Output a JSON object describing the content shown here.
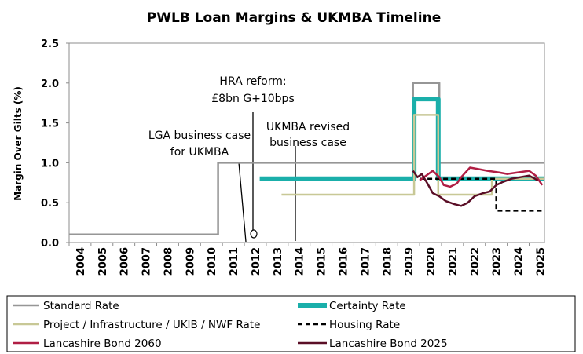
{
  "chart_data": {
    "type": "line",
    "title": "PWLB Loan Margins & UKMBA Timeline",
    "ylabel": "Margin Over Gilts (%)",
    "xlabel": "",
    "xlim": [
      2004,
      2025.7
    ],
    "ylim": [
      0,
      2.5
    ],
    "yticks": [
      0,
      0.5,
      1.0,
      1.5,
      2.0,
      2.5
    ],
    "ytick_labels": [
      "0.0",
      "0.5",
      "1.0",
      "1.5",
      "2.0",
      "2.5"
    ],
    "xticks": [
      "2004",
      "2005",
      "2006",
      "2007",
      "2008",
      "2009",
      "2010",
      "2011",
      "2012",
      "2013",
      "2014",
      "2015",
      "2016",
      "2017",
      "2018",
      "2019",
      "2020",
      "2021",
      "2022",
      "2023",
      "2024",
      "2025"
    ],
    "grid": false,
    "legend_position": "bottom",
    "series": [
      {
        "name": "Standard Rate",
        "color": "#969696",
        "style": "solid",
        "width": 2.5,
        "points": [
          [
            2004.0,
            0.1
          ],
          [
            2010.8,
            0.1
          ],
          [
            2010.8,
            1.0
          ],
          [
            2019.7,
            1.0
          ],
          [
            2019.7,
            2.0
          ],
          [
            2020.9,
            2.0
          ],
          [
            2020.9,
            1.0
          ],
          [
            2025.7,
            1.0
          ]
        ]
      },
      {
        "name": "Certainty Rate",
        "color": "#1aafaa",
        "style": "solid",
        "width": 6,
        "points": [
          [
            2012.7,
            0.8
          ],
          [
            2019.75,
            0.8
          ],
          [
            2019.75,
            1.8
          ],
          [
            2020.85,
            1.8
          ],
          [
            2020.85,
            0.8
          ],
          [
            2025.7,
            0.8
          ]
        ]
      },
      {
        "name": "Project / Infrastructure / UKIB / NWF Rate",
        "color": "#c8c896",
        "style": "solid",
        "width": 2.5,
        "points": [
          [
            2013.7,
            0.6
          ],
          [
            2019.75,
            0.6
          ],
          [
            2019.75,
            1.6
          ],
          [
            2020.85,
            1.6
          ],
          [
            2020.85,
            0.6
          ],
          [
            2023.3,
            0.6
          ],
          [
            2023.3,
            0.8
          ],
          [
            2025.7,
            0.8
          ]
        ]
      },
      {
        "name": "Housing Rate",
        "color": "#000000",
        "style": "dashed",
        "width": 2.5,
        "points": [
          [
            2020.0,
            0.8
          ],
          [
            2023.5,
            0.8
          ],
          [
            2023.5,
            0.4
          ],
          [
            2025.7,
            0.4
          ]
        ]
      },
      {
        "name": "Lancashire Bond 2060",
        "color": "#b01e44",
        "style": "solid",
        "width": 2.5,
        "points": [
          [
            2020.0,
            0.78
          ],
          [
            2020.3,
            0.84
          ],
          [
            2020.6,
            0.9
          ],
          [
            2020.9,
            0.82
          ],
          [
            2021.1,
            0.72
          ],
          [
            2021.4,
            0.7
          ],
          [
            2021.7,
            0.74
          ],
          [
            2021.9,
            0.82
          ],
          [
            2022.1,
            0.88
          ],
          [
            2022.3,
            0.94
          ],
          [
            2022.7,
            0.92
          ],
          [
            2023.1,
            0.9
          ],
          [
            2023.6,
            0.88
          ],
          [
            2024.0,
            0.86
          ],
          [
            2024.5,
            0.88
          ],
          [
            2025.0,
            0.9
          ],
          [
            2025.3,
            0.84
          ],
          [
            2025.6,
            0.72
          ]
        ]
      },
      {
        "name": "Lancashire Bond 2025",
        "color": "#5a0e26",
        "style": "solid",
        "width": 2.5,
        "points": [
          [
            2019.7,
            0.9
          ],
          [
            2019.9,
            0.82
          ],
          [
            2020.1,
            0.86
          ],
          [
            2020.4,
            0.72
          ],
          [
            2020.6,
            0.62
          ],
          [
            2020.9,
            0.58
          ],
          [
            2021.2,
            0.52
          ],
          [
            2021.6,
            0.48
          ],
          [
            2021.9,
            0.46
          ],
          [
            2022.2,
            0.5
          ],
          [
            2022.5,
            0.58
          ],
          [
            2022.9,
            0.62
          ],
          [
            2023.2,
            0.64
          ],
          [
            2023.5,
            0.72
          ],
          [
            2023.8,
            0.76
          ],
          [
            2024.2,
            0.8
          ],
          [
            2024.6,
            0.82
          ],
          [
            2025.0,
            0.84
          ],
          [
            2025.4,
            0.78
          ]
        ]
      }
    ],
    "annotations": [
      {
        "lines": [
          "HRA reform:",
          "£8bn G+10bps"
        ],
        "x": 2012.4,
        "y": 0.0,
        "marker": "circle"
      },
      {
        "lines": [
          "LGA business case",
          "for UKMBA"
        ],
        "x": 2012.0,
        "y": 0.0,
        "marker": "none"
      },
      {
        "lines": [
          "UKMBA revised",
          "business case"
        ],
        "x": 2014.4,
        "y": 0.0,
        "marker": "none"
      }
    ]
  }
}
